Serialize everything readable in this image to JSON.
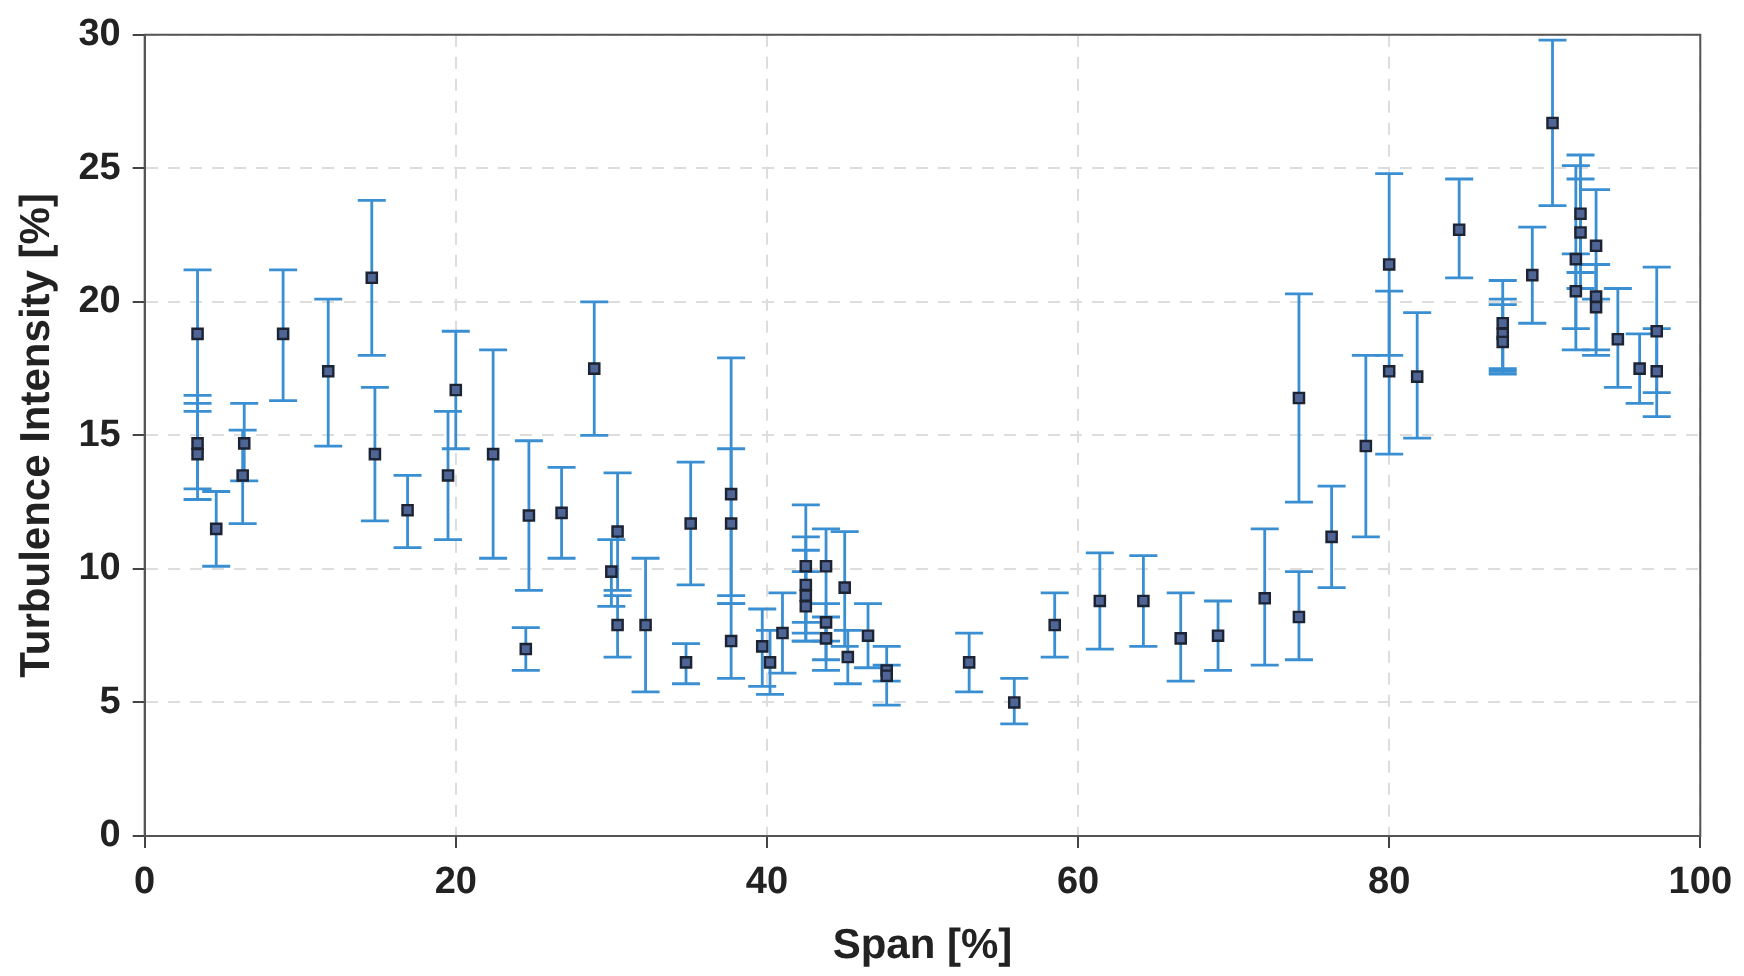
{
  "chart_data": {
    "type": "scatter",
    "xlabel": "Span [%]",
    "ylabel": "Turbulence Intensity [%]",
    "xlim": [
      0,
      100
    ],
    "ylim": [
      0,
      30
    ],
    "xticks": [
      0,
      20,
      40,
      60,
      80,
      100
    ],
    "yticks": [
      0,
      5,
      10,
      15,
      20,
      25,
      30
    ],
    "grid": true,
    "legend": false,
    "marker": "square",
    "series": [
      {
        "color": "#4f6595",
        "x": [
          3.4,
          3.4,
          3.4,
          4.6,
          6.3,
          6.4,
          8.9,
          11.8,
          14.6,
          14.8,
          16.9,
          19.5,
          20.0,
          22.4,
          24.7,
          24.5,
          26.8,
          28.9,
          30.4,
          30.0,
          30.4,
          32.2,
          34.8,
          35.1,
          37.7,
          37.7,
          37.7,
          39.7,
          40.2,
          41.0,
          42.5,
          42.5,
          42.5,
          42.5,
          43.8,
          43.8,
          43.8,
          45.0,
          45.2,
          46.5,
          47.7,
          47.7,
          53.0,
          55.9,
          58.5,
          61.4,
          64.2,
          66.6,
          69.0,
          72.0,
          74.2,
          74.2,
          76.3,
          78.5,
          80.0,
          80.0,
          81.8,
          84.5,
          87.3,
          87.3,
          87.3,
          89.2,
          90.5,
          92.3,
          92.3,
          92.0,
          92.0,
          93.3,
          93.3,
          93.3,
          94.7,
          96.1,
          97.2,
          97.2
        ],
        "values": [
          18.8,
          14.7,
          14.3,
          11.5,
          13.5,
          14.7,
          18.8,
          17.4,
          20.9,
          14.3,
          12.2,
          13.5,
          16.7,
          14.3,
          12.0,
          7.0,
          12.1,
          17.5,
          11.4,
          9.9,
          7.9,
          7.9,
          6.5,
          11.7,
          12.8,
          11.7,
          7.3,
          7.1,
          6.5,
          7.6,
          10.1,
          9.4,
          9.0,
          8.6,
          10.1,
          8.0,
          7.4,
          9.3,
          6.7,
          7.5,
          6.2,
          6.0,
          6.5,
          5.0,
          7.9,
          8.8,
          8.8,
          7.4,
          7.5,
          8.9,
          16.4,
          8.2,
          11.2,
          14.6,
          21.4,
          17.4,
          17.2,
          22.7,
          19.2,
          18.8,
          18.5,
          21.0,
          26.7,
          23.3,
          22.6,
          21.6,
          20.4,
          22.1,
          20.2,
          19.8,
          18.6,
          17.5,
          18.9,
          17.4
        ],
        "errors": [
          [
            15.9,
            21.2
          ],
          [
            13.0,
            16.5
          ],
          [
            12.6,
            16.2
          ],
          [
            10.1,
            12.9
          ],
          [
            11.7,
            15.2
          ],
          [
            13.3,
            16.2
          ],
          [
            16.3,
            21.2
          ],
          [
            14.6,
            20.1
          ],
          [
            18.0,
            23.8
          ],
          [
            11.8,
            16.8
          ],
          [
            10.8,
            13.5
          ],
          [
            11.1,
            15.9
          ],
          [
            14.5,
            18.9
          ],
          [
            10.4,
            18.2
          ],
          [
            9.2,
            14.8
          ],
          [
            6.2,
            7.8
          ],
          [
            10.4,
            13.8
          ],
          [
            15.0,
            20.0
          ],
          [
            9.2,
            13.6
          ],
          [
            8.6,
            11.1
          ],
          [
            6.7,
            9.0
          ],
          [
            5.4,
            10.4
          ],
          [
            5.7,
            7.2
          ],
          [
            9.4,
            14.0
          ],
          [
            9.0,
            17.9
          ],
          [
            8.7,
            14.5
          ],
          [
            5.9,
            8.7
          ],
          [
            5.6,
            8.5
          ],
          [
            5.3,
            7.7
          ],
          [
            6.1,
            9.1
          ],
          [
            7.3,
            12.4
          ],
          [
            8.0,
            10.7
          ],
          [
            7.6,
            11.2
          ],
          [
            7.3,
            9.9
          ],
          [
            7.3,
            11.5
          ],
          [
            6.2,
            8.7
          ],
          [
            6.6,
            8.2
          ],
          [
            7.1,
            11.4
          ],
          [
            5.7,
            7.7
          ],
          [
            6.3,
            8.7
          ],
          [
            5.8,
            7.1
          ],
          [
            4.9,
            6.4
          ],
          [
            5.4,
            7.6
          ],
          [
            4.2,
            5.9
          ],
          [
            6.7,
            9.1
          ],
          [
            7.0,
            10.6
          ],
          [
            7.1,
            10.5
          ],
          [
            5.8,
            9.1
          ],
          [
            6.2,
            8.8
          ],
          [
            6.4,
            11.5
          ],
          [
            12.5,
            20.3
          ],
          [
            6.6,
            9.9
          ],
          [
            9.3,
            13.1
          ],
          [
            11.2,
            18.0
          ],
          [
            18.0,
            24.8
          ],
          [
            14.3,
            20.4
          ],
          [
            14.9,
            19.6
          ],
          [
            20.9,
            24.6
          ],
          [
            17.5,
            20.8
          ],
          [
            17.4,
            20.1
          ],
          [
            17.3,
            19.9
          ],
          [
            19.2,
            22.8
          ],
          [
            23.6,
            29.8
          ],
          [
            21.1,
            25.5
          ],
          [
            20.5,
            24.6
          ],
          [
            19.0,
            25.1
          ],
          [
            18.2,
            21.8
          ],
          [
            20.1,
            24.2
          ],
          [
            18.0,
            21.4
          ],
          [
            18.2,
            21.4
          ],
          [
            16.8,
            20.5
          ],
          [
            16.2,
            18.8
          ],
          [
            16.6,
            21.3
          ],
          [
            15.7,
            19.0
          ]
        ]
      }
    ]
  }
}
